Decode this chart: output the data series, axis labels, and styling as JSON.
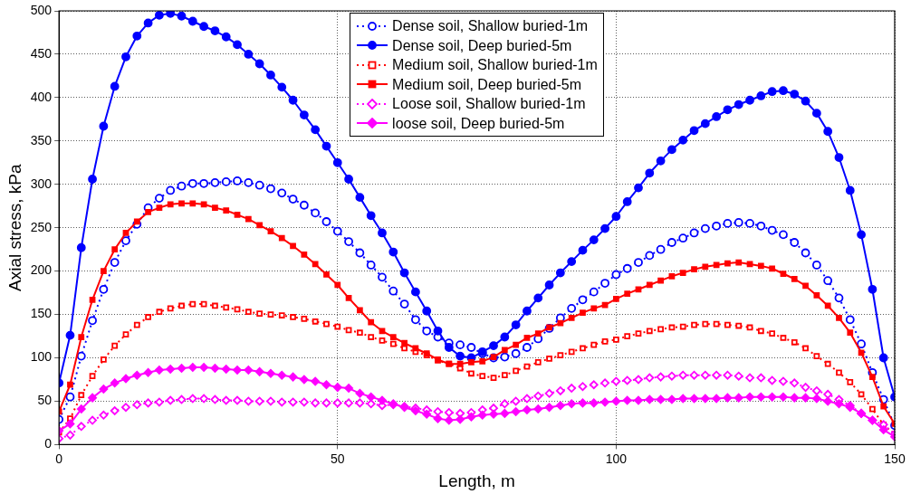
{
  "chart_data": {
    "type": "line",
    "xlabel": "Length, m",
    "ylabel": "Axial stress, kPa",
    "x": [
      0,
      2,
      4,
      6,
      8,
      10,
      12,
      14,
      16,
      18,
      20,
      22,
      24,
      26,
      28,
      30,
      32,
      34,
      36,
      38,
      40,
      42,
      44,
      46,
      48,
      50,
      52,
      54,
      56,
      58,
      60,
      62,
      64,
      66,
      68,
      70,
      72,
      74,
      76,
      78,
      80,
      82,
      84,
      86,
      88,
      90,
      92,
      94,
      96,
      98,
      100,
      102,
      104,
      106,
      108,
      110,
      112,
      114,
      116,
      118,
      120,
      122,
      124,
      126,
      128,
      130,
      132,
      134,
      136,
      138,
      140,
      142,
      144,
      146,
      148,
      150
    ],
    "xlim": [
      0,
      150
    ],
    "xticks": [
      0,
      50,
      100,
      150
    ],
    "ylim": [
      0,
      500
    ],
    "yticks": [
      0,
      50,
      100,
      150,
      200,
      250,
      300,
      350,
      400,
      450,
      500
    ],
    "grid": true,
    "legend": "top",
    "series": [
      {
        "name": "Dense soil, Shallow buried-1m",
        "color": "#0000ff",
        "marker": "circle",
        "line_style": "dotted",
        "values": [
          29,
          55,
          102,
          143,
          179,
          210,
          235,
          254,
          273,
          284,
          293,
          298,
          301,
          301,
          302,
          303,
          304,
          302,
          299,
          295,
          290,
          283,
          276,
          267,
          257,
          246,
          234,
          221,
          207,
          193,
          177,
          162,
          144,
          131,
          124,
          117,
          115,
          112,
          105,
          100,
          101,
          105,
          112,
          122,
          134,
          146,
          157,
          167,
          176,
          186,
          196,
          203,
          210,
          218,
          225,
          233,
          238,
          244,
          249,
          252,
          255,
          256,
          255,
          252,
          247,
          242,
          233,
          221,
          207,
          189,
          169,
          144,
          116,
          83,
          52,
          22
        ]
      },
      {
        "name": "Dense soil, Deep buried-5m",
        "color": "#0000ff",
        "marker": "circle",
        "line_style": "solid",
        "values": [
          71,
          126,
          227,
          306,
          367,
          413,
          447,
          471,
          486,
          495,
          497,
          494,
          488,
          482,
          477,
          470,
          461,
          450,
          439,
          426,
          412,
          397,
          380,
          363,
          344,
          325,
          306,
          285,
          264,
          244,
          222,
          198,
          176,
          154,
          131,
          112,
          102,
          100,
          107,
          114,
          124,
          138,
          154,
          169,
          184,
          198,
          211,
          224,
          236,
          249,
          263,
          280,
          296,
          313,
          327,
          340,
          351,
          362,
          370,
          378,
          386,
          392,
          397,
          402,
          407,
          408,
          404,
          396,
          382,
          361,
          331,
          293,
          242,
          179,
          100,
          55
        ]
      },
      {
        "name": "Medium soil, Shallow buried-1m",
        "color": "#ff0000",
        "marker": "square",
        "line_style": "dotted",
        "values": [
          14,
          30,
          57,
          79,
          98,
          114,
          127,
          138,
          147,
          153,
          157,
          160,
          162,
          162,
          160,
          158,
          156,
          153,
          151,
          150,
          149,
          147,
          145,
          142,
          139,
          136,
          132,
          129,
          124,
          120,
          116,
          111,
          107,
          103,
          97,
          93,
          88,
          82,
          79,
          77,
          80,
          85,
          90,
          95,
          99,
          103,
          107,
          111,
          115,
          119,
          121,
          125,
          128,
          131,
          133,
          135,
          136,
          138,
          139,
          139,
          138,
          137,
          135,
          131,
          128,
          123,
          118,
          111,
          102,
          93,
          83,
          72,
          58,
          41,
          23,
          12
        ]
      },
      {
        "name": "Medium soil, Deep buried-5m",
        "color": "#ff0000",
        "marker": "square",
        "line_style": "solid",
        "values": [
          38,
          69,
          124,
          167,
          200,
          225,
          244,
          257,
          268,
          273,
          277,
          278,
          278,
          277,
          273,
          270,
          265,
          260,
          253,
          246,
          238,
          229,
          219,
          208,
          196,
          184,
          169,
          155,
          141,
          131,
          124,
          117,
          111,
          105,
          98,
          93,
          93,
          95,
          96,
          101,
          109,
          115,
          123,
          128,
          135,
          140,
          146,
          152,
          157,
          161,
          168,
          174,
          179,
          184,
          189,
          194,
          198,
          202,
          205,
          207,
          209,
          210,
          208,
          206,
          203,
          197,
          191,
          183,
          172,
          160,
          146,
          129,
          106,
          78,
          44,
          24
        ]
      },
      {
        "name": "Loose soil, Shallow buried-1m",
        "color": "#ff00ff",
        "marker": "diamond",
        "line_style": "dotted",
        "values": [
          7,
          11,
          21,
          28,
          34,
          39,
          43,
          46,
          48,
          49,
          51,
          52,
          53,
          53,
          52,
          51,
          51,
          50,
          50,
          50,
          49,
          49,
          49,
          48,
          48,
          48,
          48,
          48,
          47,
          45,
          46,
          44,
          42,
          40,
          38,
          37,
          36,
          37,
          40,
          42,
          47,
          50,
          53,
          56,
          59,
          62,
          65,
          67,
          69,
          71,
          73,
          74,
          75,
          77,
          78,
          79,
          80,
          80,
          80,
          80,
          80,
          79,
          77,
          77,
          74,
          73,
          71,
          66,
          62,
          58,
          52,
          45,
          36,
          28,
          23,
          12
        ]
      },
      {
        "name": "loose soil, Deep buried-5m",
        "color": "#ff00ff",
        "marker": "diamond",
        "line_style": "solid",
        "values": [
          16,
          24,
          41,
          54,
          64,
          71,
          76,
          80,
          83,
          86,
          87,
          88,
          89,
          89,
          88,
          87,
          86,
          86,
          84,
          82,
          80,
          78,
          75,
          73,
          69,
          66,
          65,
          59,
          55,
          51,
          47,
          43,
          39,
          35,
          30,
          28,
          29,
          32,
          34,
          35,
          36,
          38,
          40,
          41,
          43,
          45,
          47,
          48,
          48,
          49,
          50,
          51,
          51,
          52,
          52,
          52,
          53,
          53,
          53,
          53,
          54,
          54,
          55,
          55,
          55,
          55,
          54,
          54,
          53,
          50,
          47,
          43,
          36,
          28,
          17,
          9
        ]
      }
    ]
  }
}
